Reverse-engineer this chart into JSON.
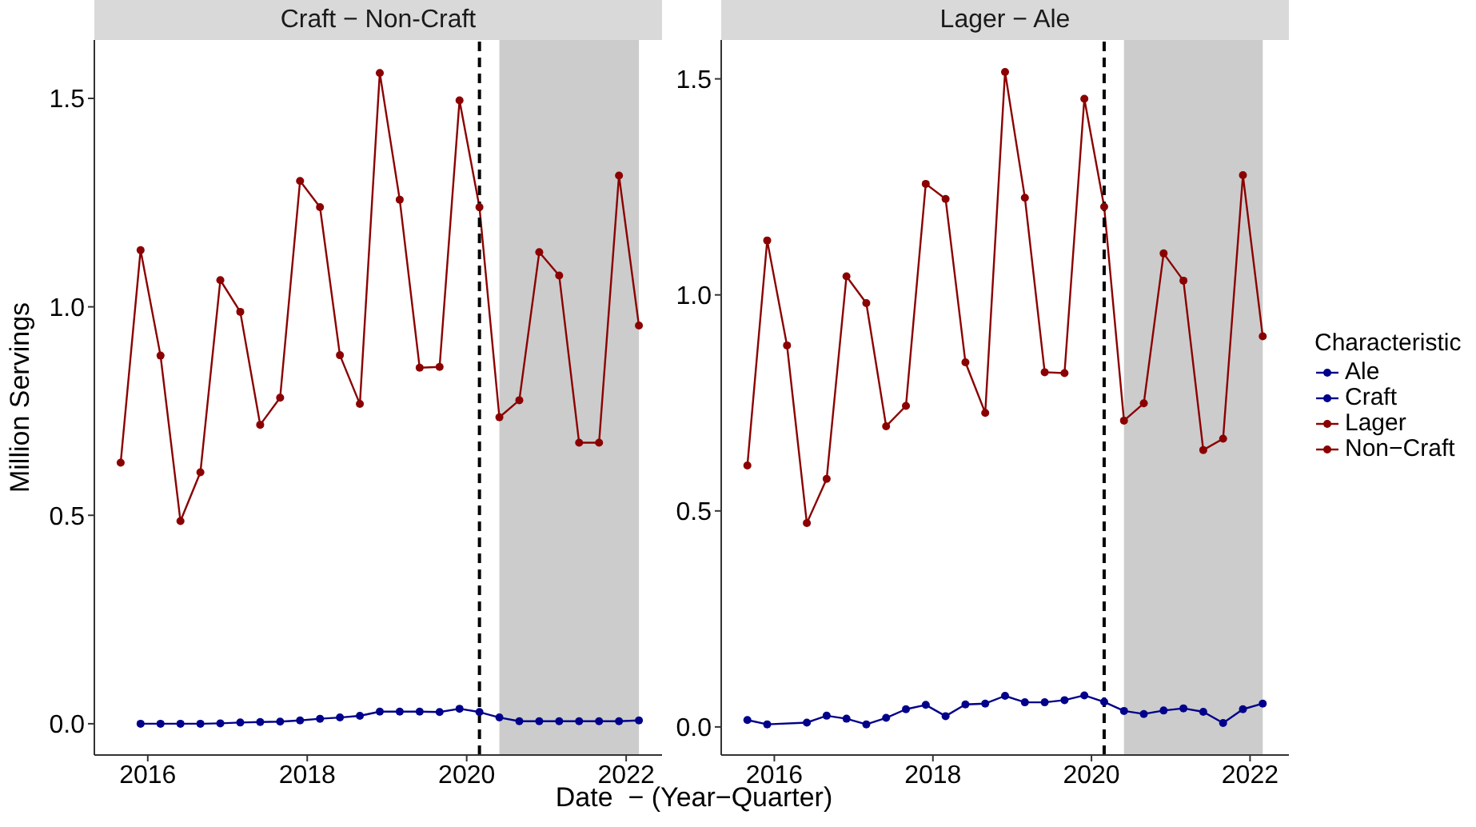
{
  "chart_data": [
    {
      "type": "line",
      "title": "Craft − Non-Craft",
      "legend": "right",
      "ylabel": "Million Servings",
      "xlabel": "Date  − (Year−Quarter)",
      "marker": "circle",
      "line_style": "solid",
      "x": [
        2015.66,
        2015.91,
        2016.16,
        2016.41,
        2016.66,
        2016.91,
        2017.16,
        2017.41,
        2017.66,
        2017.91,
        2018.16,
        2018.41,
        2018.66,
        2018.91,
        2019.16,
        2019.41,
        2019.66,
        2019.91,
        2020.16,
        2020.41,
        2020.66,
        2020.91,
        2021.16,
        2021.41,
        2021.66,
        2021.91,
        2022.16
      ],
      "xlim": [
        2015.33,
        2022.45
      ],
      "xticks": [
        2016,
        2018,
        2020,
        2022
      ],
      "ylim": [
        -0.075,
        1.64
      ],
      "yticks": [
        {
          "value": 0,
          "label": "0.0"
        },
        {
          "value": 0.5,
          "label": "0.5"
        },
        {
          "value": 1,
          "label": "1.0"
        },
        {
          "value": 1.5,
          "label": "1.5"
        }
      ],
      "ref_lines": [
        {
          "axis": "x",
          "value": 2020.16,
          "color": "#000000",
          "line_style": "dashed"
        }
      ],
      "bands": [
        {
          "axis": "x",
          "from": 2020.41,
          "to": 2022.16,
          "color": "#cccccc"
        }
      ],
      "series": [
        {
          "name": "Craft",
          "color": "#00008b",
          "values": [
            null,
            0.0,
            0.0,
            0.0,
            0.0,
            0.001,
            0.003,
            0.004,
            0.005,
            0.008,
            0.012,
            0.015,
            0.019,
            0.029,
            0.029,
            0.029,
            0.028,
            0.036,
            0.028,
            0.015,
            0.006,
            0.006,
            0.006,
            0.006,
            0.006,
            0.006,
            0.008
          ]
        },
        {
          "name": "Non−Craft",
          "color": "#8b0000",
          "values": [
            0.626,
            1.136,
            0.883,
            0.486,
            0.603,
            1.064,
            0.988,
            0.717,
            0.782,
            1.302,
            1.239,
            0.884,
            0.767,
            1.561,
            1.257,
            0.854,
            0.856,
            1.495,
            1.239,
            0.735,
            0.776,
            1.131,
            1.075,
            0.674,
            0.674,
            1.315,
            0.955
          ]
        }
      ]
    },
    {
      "type": "line",
      "title": "Lager − Ale",
      "legend": "right",
      "legend_title": "Characteristic",
      "marker": "circle",
      "line_style": "solid",
      "x": [
        2015.66,
        2015.91,
        2016.16,
        2016.41,
        2016.66,
        2016.91,
        2017.16,
        2017.41,
        2017.66,
        2017.91,
        2018.16,
        2018.41,
        2018.66,
        2018.91,
        2019.16,
        2019.41,
        2019.66,
        2019.91,
        2020.16,
        2020.41,
        2020.66,
        2020.91,
        2021.16,
        2021.41,
        2021.66,
        2021.91,
        2022.16
      ],
      "xlim": [
        2015.33,
        2022.49
      ],
      "xticks": [
        2016,
        2018,
        2020,
        2022
      ],
      "ylim": [
        -0.065,
        1.59
      ],
      "yticks": [
        {
          "value": 0,
          "label": "0.0"
        },
        {
          "value": 0.5,
          "label": "0.5"
        },
        {
          "value": 1,
          "label": "1.0"
        },
        {
          "value": 1.5,
          "label": "1.5"
        }
      ],
      "ref_lines": [
        {
          "axis": "x",
          "value": 2020.16,
          "color": "#000000",
          "line_style": "dashed"
        }
      ],
      "bands": [
        {
          "axis": "x",
          "from": 2020.41,
          "to": 2022.16,
          "color": "#cccccc"
        }
      ],
      "series": [
        {
          "name": "Ale",
          "color": "#00008b",
          "values": [
            0.016,
            0.006,
            null,
            0.01,
            0.026,
            0.019,
            0.006,
            0.021,
            0.041,
            0.051,
            0.025,
            0.052,
            0.054,
            0.072,
            0.057,
            0.057,
            0.062,
            0.073,
            0.058,
            0.037,
            0.03,
            0.038,
            0.043,
            0.035,
            0.009,
            0.041,
            0.054
          ]
        },
        {
          "name": "Lager",
          "color": "#8b0000",
          "values": [
            0.605,
            1.126,
            0.883,
            0.472,
            0.574,
            1.043,
            0.981,
            0.696,
            0.743,
            1.257,
            1.222,
            0.844,
            0.727,
            1.516,
            1.225,
            0.821,
            0.819,
            1.454,
            1.204,
            0.709,
            0.749,
            1.096,
            1.033,
            0.641,
            0.667,
            1.277,
            0.904
          ]
        }
      ]
    }
  ]
}
